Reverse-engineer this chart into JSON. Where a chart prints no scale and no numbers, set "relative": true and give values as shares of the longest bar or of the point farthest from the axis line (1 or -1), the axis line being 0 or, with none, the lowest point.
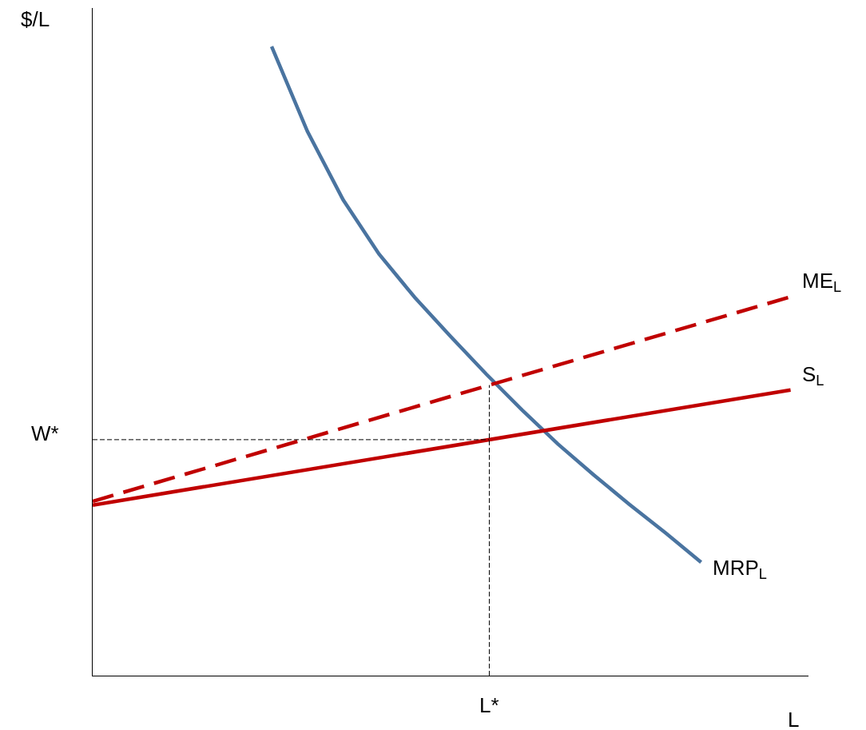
{
  "chart_data": {
    "type": "line",
    "relative": true,
    "xlabel": "L",
    "ylabel": "$/L",
    "legend": false,
    "marker": "none",
    "categories": [
      null,
      null,
      null,
      null,
      null,
      null,
      null,
      null,
      null,
      null,
      null,
      null,
      null,
      null,
      null,
      null,
      null,
      null,
      null,
      null,
      null,
      null,
      null,
      null,
      null,
      null,
      null,
      null,
      null,
      null,
      null,
      null,
      null,
      null,
      null,
      null,
      null,
      null,
      null,
      null,
      null
    ],
    "series": [
      {
        "name": "MRP$_{L}$",
        "color": "#4a74a0",
        "values": [
          null,
          null,
          null,
          null,
          null,
          null,
          null,
          null,
          null,
          null,
          1.0,
          null,
          0.865,
          null,
          0.756,
          null,
          0.67,
          null,
          0.601,
          null,
          0.539,
          null,
          0.479,
          null,
          0.422,
          null,
          0.368,
          null,
          0.319,
          null,
          0.272,
          null,
          0.227,
          null,
          0.18,
          null,
          null,
          null,
          null,
          null,
          null
        ]
      },
      {
        "name": "ME$_{L}$",
        "color": "#c00000",
        "line_style": "dashed",
        "values": [
          0.277,
          null,
          null,
          null,
          null,
          null,
          null,
          null,
          null,
          null,
          null,
          null,
          null,
          null,
          null,
          null,
          null,
          null,
          null,
          null,
          null,
          null,
          null,
          null,
          null,
          null,
          null,
          null,
          null,
          null,
          null,
          null,
          null,
          null,
          null,
          null,
          null,
          null,
          null,
          0.602,
          null
        ]
      },
      {
        "name": "S$_{L}$",
        "color": "#c00000",
        "values": [
          0.271,
          null,
          null,
          null,
          null,
          null,
          null,
          null,
          null,
          null,
          null,
          null,
          null,
          null,
          null,
          null,
          null,
          null,
          null,
          null,
          null,
          null,
          null,
          null,
          null,
          null,
          null,
          null,
          null,
          null,
          null,
          null,
          null,
          null,
          null,
          null,
          null,
          null,
          null,
          0.454,
          null
        ]
      }
    ],
    "ref_lines": [
      {
        "axis": "y",
        "value": 0.375,
        "label": "W*",
        "color": "#000000",
        "line_style": "dashed"
      }
    ],
    "annotations": [
      "L*"
    ]
  }
}
